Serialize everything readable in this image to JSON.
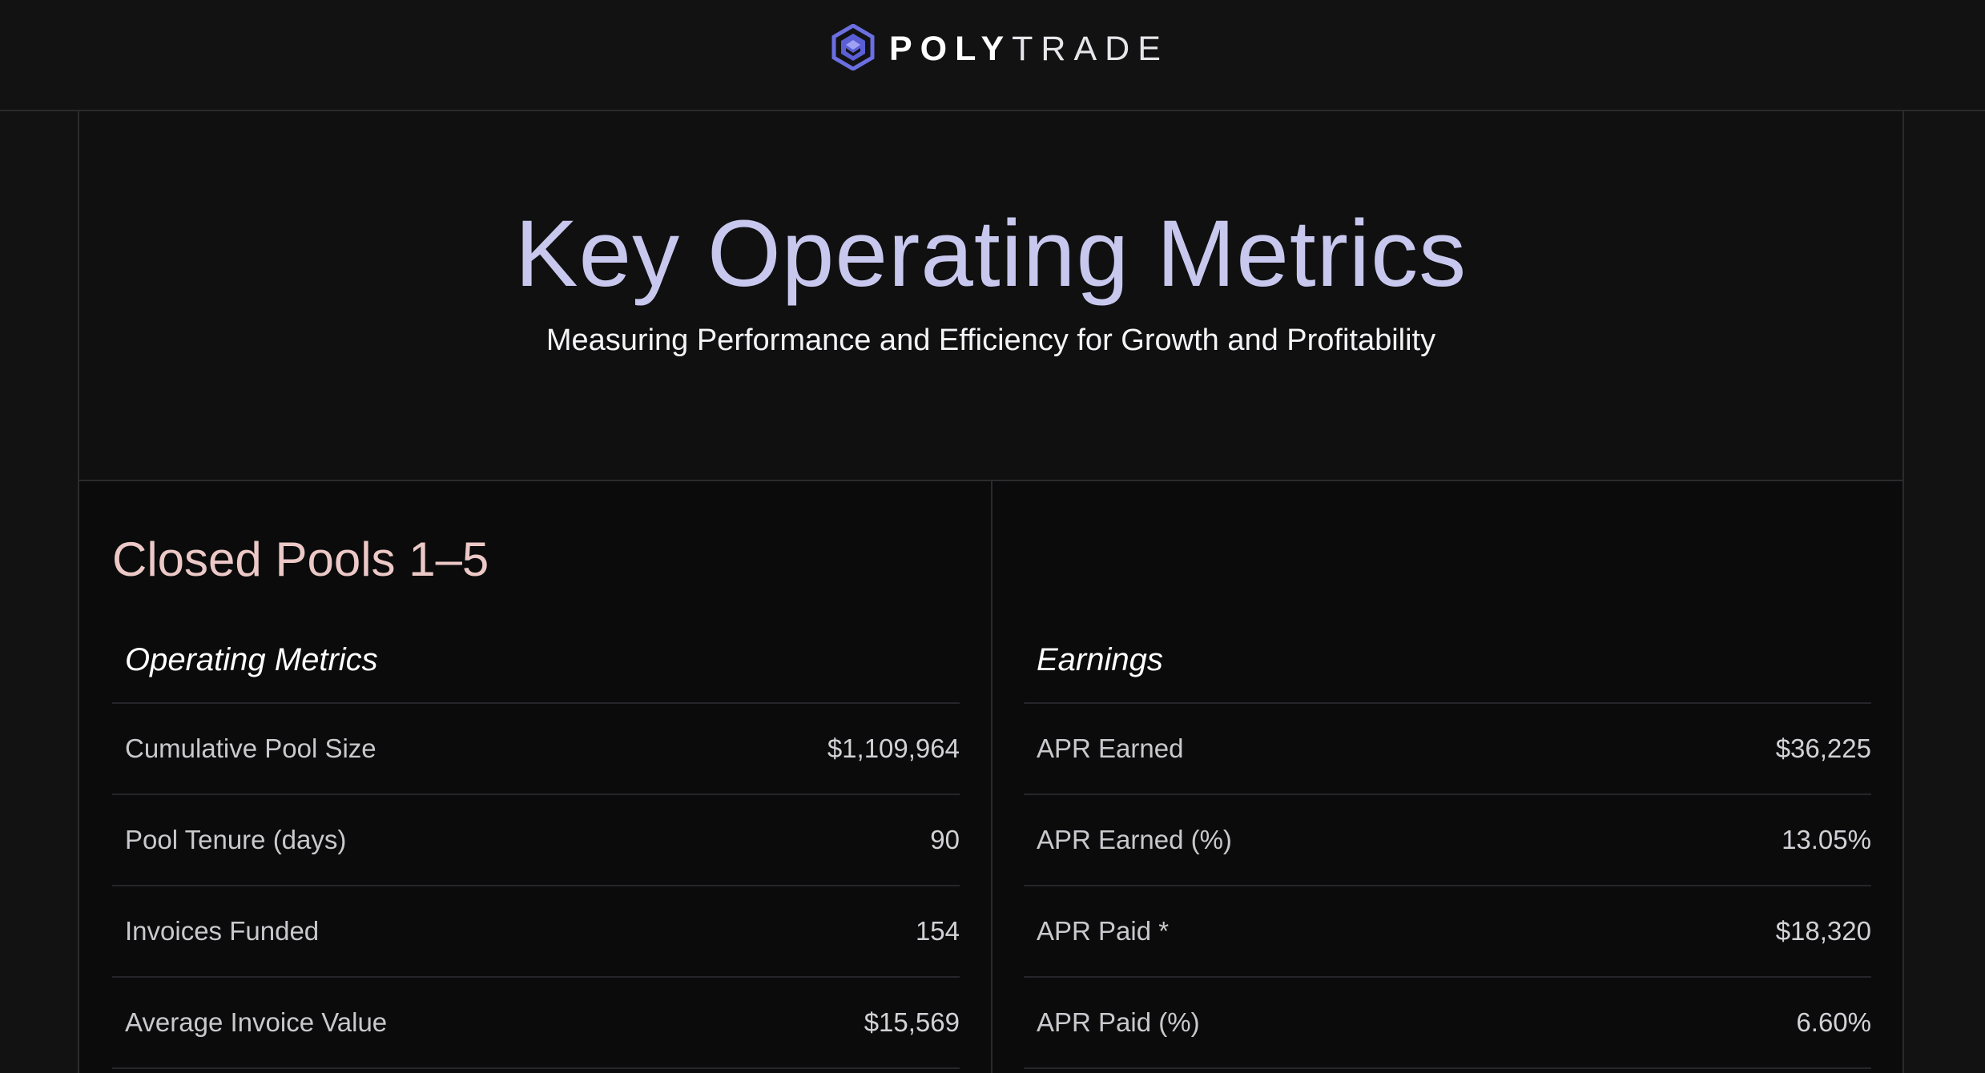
{
  "header": {
    "brand_bold": "POLY",
    "brand_light": "TRADE",
    "logo_icon": "polytrade-logo-icon",
    "accent": "#6b6fe0"
  },
  "hero": {
    "title": "Key Operating Metrics",
    "subtitle": "Measuring Performance and Efficiency for Growth and Profitability"
  },
  "section": {
    "title": "Closed Pools 1–5"
  },
  "operating": {
    "heading": "Operating Metrics",
    "rows": [
      {
        "label": "Cumulative Pool Size",
        "value": "$1,109,964"
      },
      {
        "label": "Pool Tenure (days)",
        "value": "90"
      },
      {
        "label": "Invoices Funded",
        "value": "154"
      },
      {
        "label": "Average Invoice Value",
        "value": "$15,569"
      }
    ]
  },
  "earnings": {
    "heading": "Earnings",
    "rows": [
      {
        "label": "APR Earned",
        "value": "$36,225"
      },
      {
        "label": "APR Earned (%)",
        "value": "13.05%"
      },
      {
        "label": "APR Paid *",
        "value": "$18,320"
      },
      {
        "label": "APR Paid (%)",
        "value": "6.60%"
      }
    ]
  }
}
